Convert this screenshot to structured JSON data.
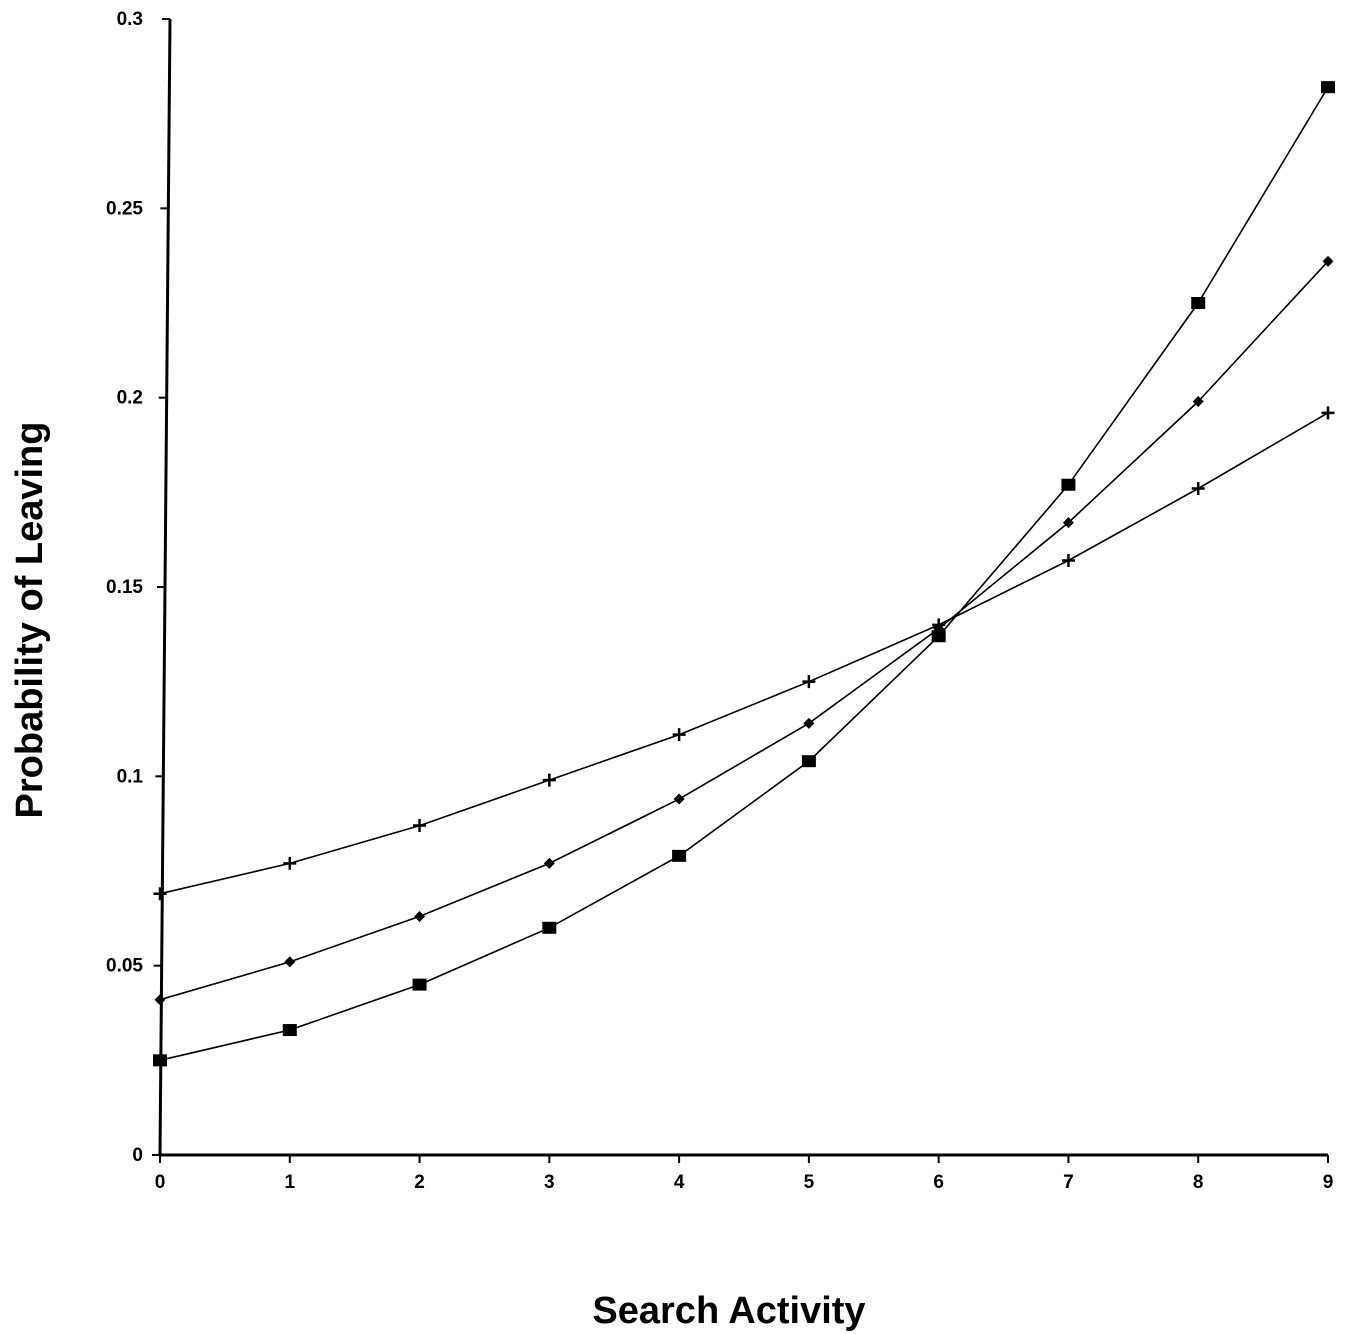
{
  "chart_data": {
    "type": "line",
    "title": "",
    "xlabel": "Search Activity",
    "ylabel": "Probability of Leaving",
    "x": [
      0,
      1,
      2,
      3,
      4,
      5,
      6,
      7,
      8,
      9
    ],
    "xlim": [
      0,
      9
    ],
    "ylim": [
      0,
      0.3
    ],
    "x_tick_labels": [
      "0",
      "1",
      "2",
      "3",
      "4",
      "5",
      "6",
      "7",
      "8",
      "9"
    ],
    "y_ticks": [
      0,
      0.05,
      0.1,
      0.15,
      0.2,
      0.25,
      0.3
    ],
    "y_tick_labels": [
      "0",
      "0.05",
      "0.1",
      "0.15",
      "0.2",
      "0.25",
      "0.3"
    ],
    "grid": false,
    "legend": "none",
    "series": [
      {
        "marker": "square",
        "values": [
          0.025,
          0.033,
          0.045,
          0.06,
          0.079,
          0.104,
          0.137,
          0.177,
          0.225,
          0.282
        ]
      },
      {
        "marker": "diamond",
        "values": [
          0.041,
          0.051,
          0.063,
          0.077,
          0.094,
          0.114,
          0.139,
          0.167,
          0.199,
          0.236
        ]
      },
      {
        "marker": "plus",
        "values": [
          0.069,
          0.077,
          0.087,
          0.099,
          0.111,
          0.125,
          0.14,
          0.157,
          0.176,
          0.196
        ]
      }
    ]
  }
}
